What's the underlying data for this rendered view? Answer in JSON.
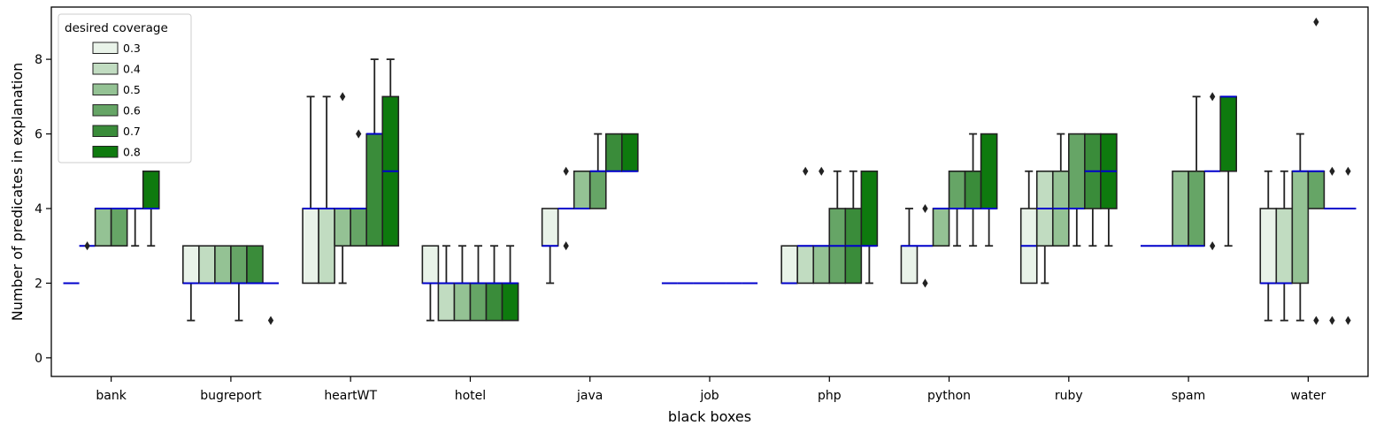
{
  "chart_data": {
    "type": "box",
    "xlabel": "black boxes",
    "ylabel": "Number of predicates in explanation",
    "ylim": [
      -0.5,
      9.4
    ],
    "yticks": [
      0,
      2,
      4,
      6,
      8
    ],
    "categories": [
      "bank",
      "bugreport",
      "heartWT",
      "hotel",
      "java",
      "job",
      "php",
      "python",
      "ruby",
      "spam",
      "water"
    ],
    "legend": {
      "title": "desired coverage",
      "placement": "top-left",
      "entries": [
        "0.3",
        "0.4",
        "0.5",
        "0.6",
        "0.7",
        "0.8"
      ]
    },
    "colors": {
      "fills": [
        "#e9f3e9",
        "#c1dcc1",
        "#94c294",
        "#66a566",
        "#3a8c3a",
        "#0e7a0e"
      ],
      "median": "#0000cc",
      "edge": "#222222"
    },
    "boxes": {
      "bank": [
        {
          "q1": 2,
          "med": 2,
          "q3": 2,
          "wlo": 2,
          "whi": 2,
          "fliers": []
        },
        {
          "q1": 3,
          "med": 3,
          "q3": 3,
          "wlo": 3,
          "whi": 3,
          "fliers": [
            3
          ]
        },
        {
          "q1": 3,
          "med": 4,
          "q3": 4,
          "wlo": 3,
          "whi": 4,
          "fliers": []
        },
        {
          "q1": 3,
          "med": 4,
          "q3": 4,
          "wlo": 3,
          "whi": 4,
          "fliers": []
        },
        {
          "q1": 4,
          "med": 4,
          "q3": 4,
          "wlo": 3,
          "whi": 4,
          "fliers": []
        },
        {
          "q1": 4,
          "med": 4,
          "q3": 5,
          "wlo": 3,
          "whi": 5,
          "fliers": []
        }
      ],
      "bugreport": [
        {
          "q1": 2,
          "med": 2,
          "q3": 3,
          "wlo": 1,
          "whi": 3,
          "fliers": []
        },
        {
          "q1": 2,
          "med": 2,
          "q3": 3,
          "wlo": 2,
          "whi": 3,
          "fliers": []
        },
        {
          "q1": 2,
          "med": 2,
          "q3": 3,
          "wlo": 2,
          "whi": 3,
          "fliers": []
        },
        {
          "q1": 2,
          "med": 2,
          "q3": 3,
          "wlo": 1,
          "whi": 3,
          "fliers": []
        },
        {
          "q1": 2,
          "med": 2,
          "q3": 3,
          "wlo": 2,
          "whi": 3,
          "fliers": []
        },
        {
          "q1": 2,
          "med": 2,
          "q3": 2,
          "wlo": 2,
          "whi": 2,
          "fliers": [
            1
          ]
        }
      ],
      "heartWT": [
        {
          "q1": 2,
          "med": 4,
          "q3": 4,
          "wlo": 2,
          "whi": 7,
          "fliers": []
        },
        {
          "q1": 2,
          "med": 4,
          "q3": 4,
          "wlo": 2,
          "whi": 7,
          "fliers": []
        },
        {
          "q1": 3,
          "med": 4,
          "q3": 4,
          "wlo": 2,
          "whi": 4,
          "fliers": [
            7
          ]
        },
        {
          "q1": 3,
          "med": 4,
          "q3": 4,
          "wlo": 3,
          "whi": 4,
          "fliers": [
            6
          ]
        },
        {
          "q1": 3,
          "med": 6,
          "q3": 6,
          "wlo": 3,
          "whi": 8,
          "fliers": []
        },
        {
          "q1": 3,
          "med": 5,
          "q3": 7,
          "wlo": 3,
          "whi": 8,
          "fliers": []
        }
      ],
      "hotel": [
        {
          "q1": 2,
          "med": 2,
          "q3": 3,
          "wlo": 1,
          "whi": 3,
          "fliers": []
        },
        {
          "q1": 1,
          "med": 2,
          "q3": 2,
          "wlo": 1,
          "whi": 3,
          "fliers": []
        },
        {
          "q1": 1,
          "med": 2,
          "q3": 2,
          "wlo": 1,
          "whi": 3,
          "fliers": []
        },
        {
          "q1": 1,
          "med": 2,
          "q3": 2,
          "wlo": 1,
          "whi": 3,
          "fliers": []
        },
        {
          "q1": 1,
          "med": 2,
          "q3": 2,
          "wlo": 1,
          "whi": 3,
          "fliers": []
        },
        {
          "q1": 1,
          "med": 2,
          "q3": 2,
          "wlo": 1,
          "whi": 3,
          "fliers": []
        }
      ],
      "java": [
        {
          "q1": 3,
          "med": 3,
          "q3": 4,
          "wlo": 2,
          "whi": 4,
          "fliers": []
        },
        {
          "q1": 4,
          "med": 4,
          "q3": 4,
          "wlo": 4,
          "whi": 4,
          "fliers": [
            5,
            3
          ]
        },
        {
          "q1": 4,
          "med": 4,
          "q3": 5,
          "wlo": 4,
          "whi": 5,
          "fliers": []
        },
        {
          "q1": 4,
          "med": 5,
          "q3": 5,
          "wlo": 4,
          "whi": 6,
          "fliers": []
        },
        {
          "q1": 5,
          "med": 5,
          "q3": 6,
          "wlo": 5,
          "whi": 6,
          "fliers": []
        },
        {
          "q1": 5,
          "med": 5,
          "q3": 6,
          "wlo": 5,
          "whi": 6,
          "fliers": []
        }
      ],
      "job": [
        {
          "q1": 2,
          "med": 2,
          "q3": 2,
          "wlo": 2,
          "whi": 2,
          "fliers": []
        },
        {
          "q1": 2,
          "med": 2,
          "q3": 2,
          "wlo": 2,
          "whi": 2,
          "fliers": []
        },
        {
          "q1": 2,
          "med": 2,
          "q3": 2,
          "wlo": 2,
          "whi": 2,
          "fliers": []
        },
        {
          "q1": 2,
          "med": 2,
          "q3": 2,
          "wlo": 2,
          "whi": 2,
          "fliers": []
        },
        {
          "q1": 2,
          "med": 2,
          "q3": 2,
          "wlo": 2,
          "whi": 2,
          "fliers": []
        },
        {
          "q1": 2,
          "med": 2,
          "q3": 2,
          "wlo": 2,
          "whi": 2,
          "fliers": []
        }
      ],
      "php": [
        {
          "q1": 2,
          "med": 2,
          "q3": 3,
          "wlo": 2,
          "whi": 3,
          "fliers": []
        },
        {
          "q1": 2,
          "med": 3,
          "q3": 3,
          "wlo": 2,
          "whi": 3,
          "fliers": [
            5
          ]
        },
        {
          "q1": 2,
          "med": 3,
          "q3": 3,
          "wlo": 2,
          "whi": 3,
          "fliers": [
            5
          ]
        },
        {
          "q1": 2,
          "med": 3,
          "q3": 4,
          "wlo": 2,
          "whi": 5,
          "fliers": []
        },
        {
          "q1": 2,
          "med": 3,
          "q3": 4,
          "wlo": 2,
          "whi": 5,
          "fliers": []
        },
        {
          "q1": 3,
          "med": 3,
          "q3": 5,
          "wlo": 2,
          "whi": 5,
          "fliers": []
        }
      ],
      "python": [
        {
          "q1": 2,
          "med": 3,
          "q3": 3,
          "wlo": 2,
          "whi": 4,
          "fliers": []
        },
        {
          "q1": 3,
          "med": 3,
          "q3": 3,
          "wlo": 3,
          "whi": 3,
          "fliers": [
            4,
            2
          ]
        },
        {
          "q1": 3,
          "med": 4,
          "q3": 4,
          "wlo": 3,
          "whi": 4,
          "fliers": []
        },
        {
          "q1": 4,
          "med": 4,
          "q3": 5,
          "wlo": 3,
          "whi": 5,
          "fliers": []
        },
        {
          "q1": 4,
          "med": 4,
          "q3": 5,
          "wlo": 3,
          "whi": 6,
          "fliers": []
        },
        {
          "q1": 4,
          "med": 4,
          "q3": 6,
          "wlo": 3,
          "whi": 6,
          "fliers": []
        }
      ],
      "ruby": [
        {
          "q1": 2,
          "med": 3,
          "q3": 4,
          "wlo": 2,
          "whi": 5,
          "fliers": []
        },
        {
          "q1": 3,
          "med": 4,
          "q3": 5,
          "wlo": 2,
          "whi": 5,
          "fliers": []
        },
        {
          "q1": 3,
          "med": 4,
          "q3": 5,
          "wlo": 3,
          "whi": 6,
          "fliers": []
        },
        {
          "q1": 4,
          "med": 4,
          "q3": 6,
          "wlo": 3,
          "whi": 6,
          "fliers": []
        },
        {
          "q1": 4,
          "med": 5,
          "q3": 6,
          "wlo": 3,
          "whi": 6,
          "fliers": []
        },
        {
          "q1": 4,
          "med": 5,
          "q3": 6,
          "wlo": 3,
          "whi": 6,
          "fliers": []
        }
      ],
      "spam": [
        {
          "q1": 3,
          "med": 3,
          "q3": 3,
          "wlo": 3,
          "whi": 3,
          "fliers": []
        },
        {
          "q1": 3,
          "med": 3,
          "q3": 3,
          "wlo": 3,
          "whi": 3,
          "fliers": []
        },
        {
          "q1": 3,
          "med": 3,
          "q3": 5,
          "wlo": 3,
          "whi": 5,
          "fliers": []
        },
        {
          "q1": 3,
          "med": 3,
          "q3": 5,
          "wlo": 3,
          "whi": 7,
          "fliers": []
        },
        {
          "q1": 5,
          "med": 5,
          "q3": 5,
          "wlo": 5,
          "whi": 5,
          "fliers": [
            7,
            3
          ]
        },
        {
          "q1": 5,
          "med": 7,
          "q3": 7,
          "wlo": 3,
          "whi": 7,
          "fliers": []
        }
      ],
      "water": [
        {
          "q1": 2,
          "med": 2,
          "q3": 4,
          "wlo": 1,
          "whi": 5,
          "fliers": []
        },
        {
          "q1": 2,
          "med": 2,
          "q3": 4,
          "wlo": 1,
          "whi": 5,
          "fliers": []
        },
        {
          "q1": 2,
          "med": 5,
          "q3": 5,
          "wlo": 1,
          "whi": 6,
          "fliers": []
        },
        {
          "q1": 4,
          "med": 5,
          "q3": 5,
          "wlo": 4,
          "whi": 5,
          "fliers": [
            9,
            1
          ]
        },
        {
          "q1": 4,
          "med": 4,
          "q3": 4,
          "wlo": 4,
          "whi": 4,
          "fliers": [
            5,
            1
          ]
        },
        {
          "q1": 4,
          "med": 4,
          "q3": 4,
          "wlo": 4,
          "whi": 4,
          "fliers": [
            5,
            1
          ]
        }
      ]
    }
  }
}
